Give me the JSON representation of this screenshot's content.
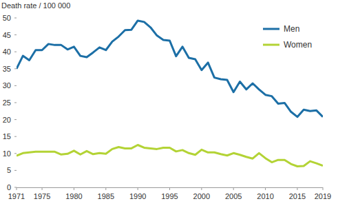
{
  "chart_data": {
    "type": "line",
    "y_label": "Death rate / 100 000",
    "x": [
      1971,
      1972,
      1973,
      1974,
      1975,
      1976,
      1977,
      1978,
      1979,
      1980,
      1981,
      1982,
      1983,
      1984,
      1985,
      1986,
      1987,
      1988,
      1989,
      1990,
      1991,
      1992,
      1993,
      1994,
      1995,
      1996,
      1997,
      1998,
      1999,
      2000,
      2001,
      2002,
      2003,
      2004,
      2005,
      2006,
      2007,
      2008,
      2009,
      2010,
      2011,
      2012,
      2013,
      2014,
      2015,
      2016,
      2017,
      2018,
      2019
    ],
    "series": [
      {
        "name": "Men",
        "color": "#1c6fa6",
        "values": [
          35,
          38.8,
          37.5,
          40.5,
          40.5,
          42.3,
          42,
          42,
          40.7,
          41.5,
          38.8,
          38.4,
          39.8,
          41.3,
          40.5,
          43,
          44.5,
          46.4,
          46.5,
          49.2,
          48.8,
          47.2,
          44.8,
          43.5,
          43.3,
          38.7,
          41.5,
          38.2,
          37.8,
          34.6,
          36.8,
          32.4,
          31.9,
          31.7,
          28.1,
          31.2,
          28.9,
          30.7,
          28.9,
          27.3,
          26.9,
          24.7,
          24.9,
          22.3,
          20.8,
          22.9,
          22.5,
          22.7,
          20.8
        ]
      },
      {
        "name": "Women",
        "color": "#b3d335",
        "values": [
          9.3,
          10.1,
          10.3,
          10.5,
          10.5,
          10.5,
          10.5,
          9.7,
          9.9,
          10.8,
          9.7,
          10.7,
          9.8,
          10.1,
          9.9,
          11.3,
          11.9,
          11.5,
          11.5,
          12.5,
          11.7,
          11.5,
          11.3,
          11.7,
          11.7,
          10.6,
          11,
          10.1,
          9.6,
          11.1,
          10.3,
          10.3,
          9.8,
          9.4,
          10.1,
          9.6,
          9,
          8.5,
          10.1,
          8.6,
          7.4,
          8.1,
          8.1,
          6.9,
          6.2,
          6.3,
          7.7,
          7.1,
          6.4
        ]
      }
    ],
    "xlim": [
      1971,
      2019
    ],
    "xticks": [
      1971,
      1975,
      1980,
      1985,
      1990,
      1995,
      2000,
      2005,
      2010,
      2015,
      2019
    ],
    "ylim": [
      0,
      50
    ],
    "yticks": [
      0,
      5,
      10,
      15,
      20,
      25,
      30,
      35,
      40,
      45,
      50
    ],
    "grid": false,
    "legend": "top-right"
  }
}
